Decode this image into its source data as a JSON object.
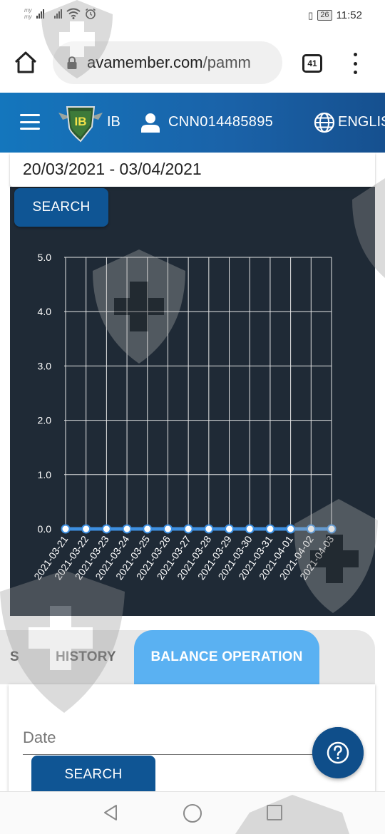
{
  "status_bar": {
    "carrier_1": "my",
    "carrier_2": "my",
    "battery": "26",
    "time": "11:52",
    "icons": [
      "signal-icon",
      "wifi-icon",
      "alarm-icon",
      "vibrate-icon",
      "battery-icon"
    ]
  },
  "browser": {
    "url_domain": "avamember.com",
    "url_path": "/pamm",
    "tab_count": "41",
    "icons": [
      "home-icon",
      "lock-icon",
      "tabs-icon",
      "more-vert-icon"
    ]
  },
  "header": {
    "logo_text": "IB",
    "ib_label": "IB",
    "account_id": "CNN014485895",
    "language": "ENGLIS",
    "icons": [
      "hamburger-icon",
      "user-icon",
      "globe-icon"
    ],
    "color": "#1a62a8"
  },
  "filter": {
    "date_range": "20/03/2021 - 03/04/2021",
    "search_label": "SEARCH"
  },
  "chart_data": {
    "type": "line",
    "x": [
      "2021-03-21",
      "2021-03-22",
      "2021-03-23",
      "2021-03-24",
      "2021-03-25",
      "2021-03-26",
      "2021-03-27",
      "2021-03-28",
      "2021-03-29",
      "2021-03-30",
      "2021-03-31",
      "2021-04-01",
      "2021-04-02",
      "2021-04-03"
    ],
    "values": [
      0,
      0,
      0,
      0,
      0,
      0,
      0,
      0,
      0,
      0,
      0,
      0,
      0,
      0
    ],
    "yticks": [
      "0.0",
      "1.0",
      "2.0",
      "3.0",
      "4.0",
      "5.0"
    ],
    "ylim": [
      0,
      5
    ],
    "grid": true,
    "line_color": "#3d8fe0",
    "background": "#1f2a36"
  },
  "tabs": {
    "prev_partial": "S",
    "history": "HISTORY",
    "balance_operation": "BALANCE OPERATION",
    "active_color": "#5ab1f2"
  },
  "form": {
    "date_label": "Date",
    "search_label": "SEARCH"
  },
  "nav": {
    "icons": [
      "back-icon",
      "home-circle-icon",
      "recent-apps-icon"
    ]
  }
}
